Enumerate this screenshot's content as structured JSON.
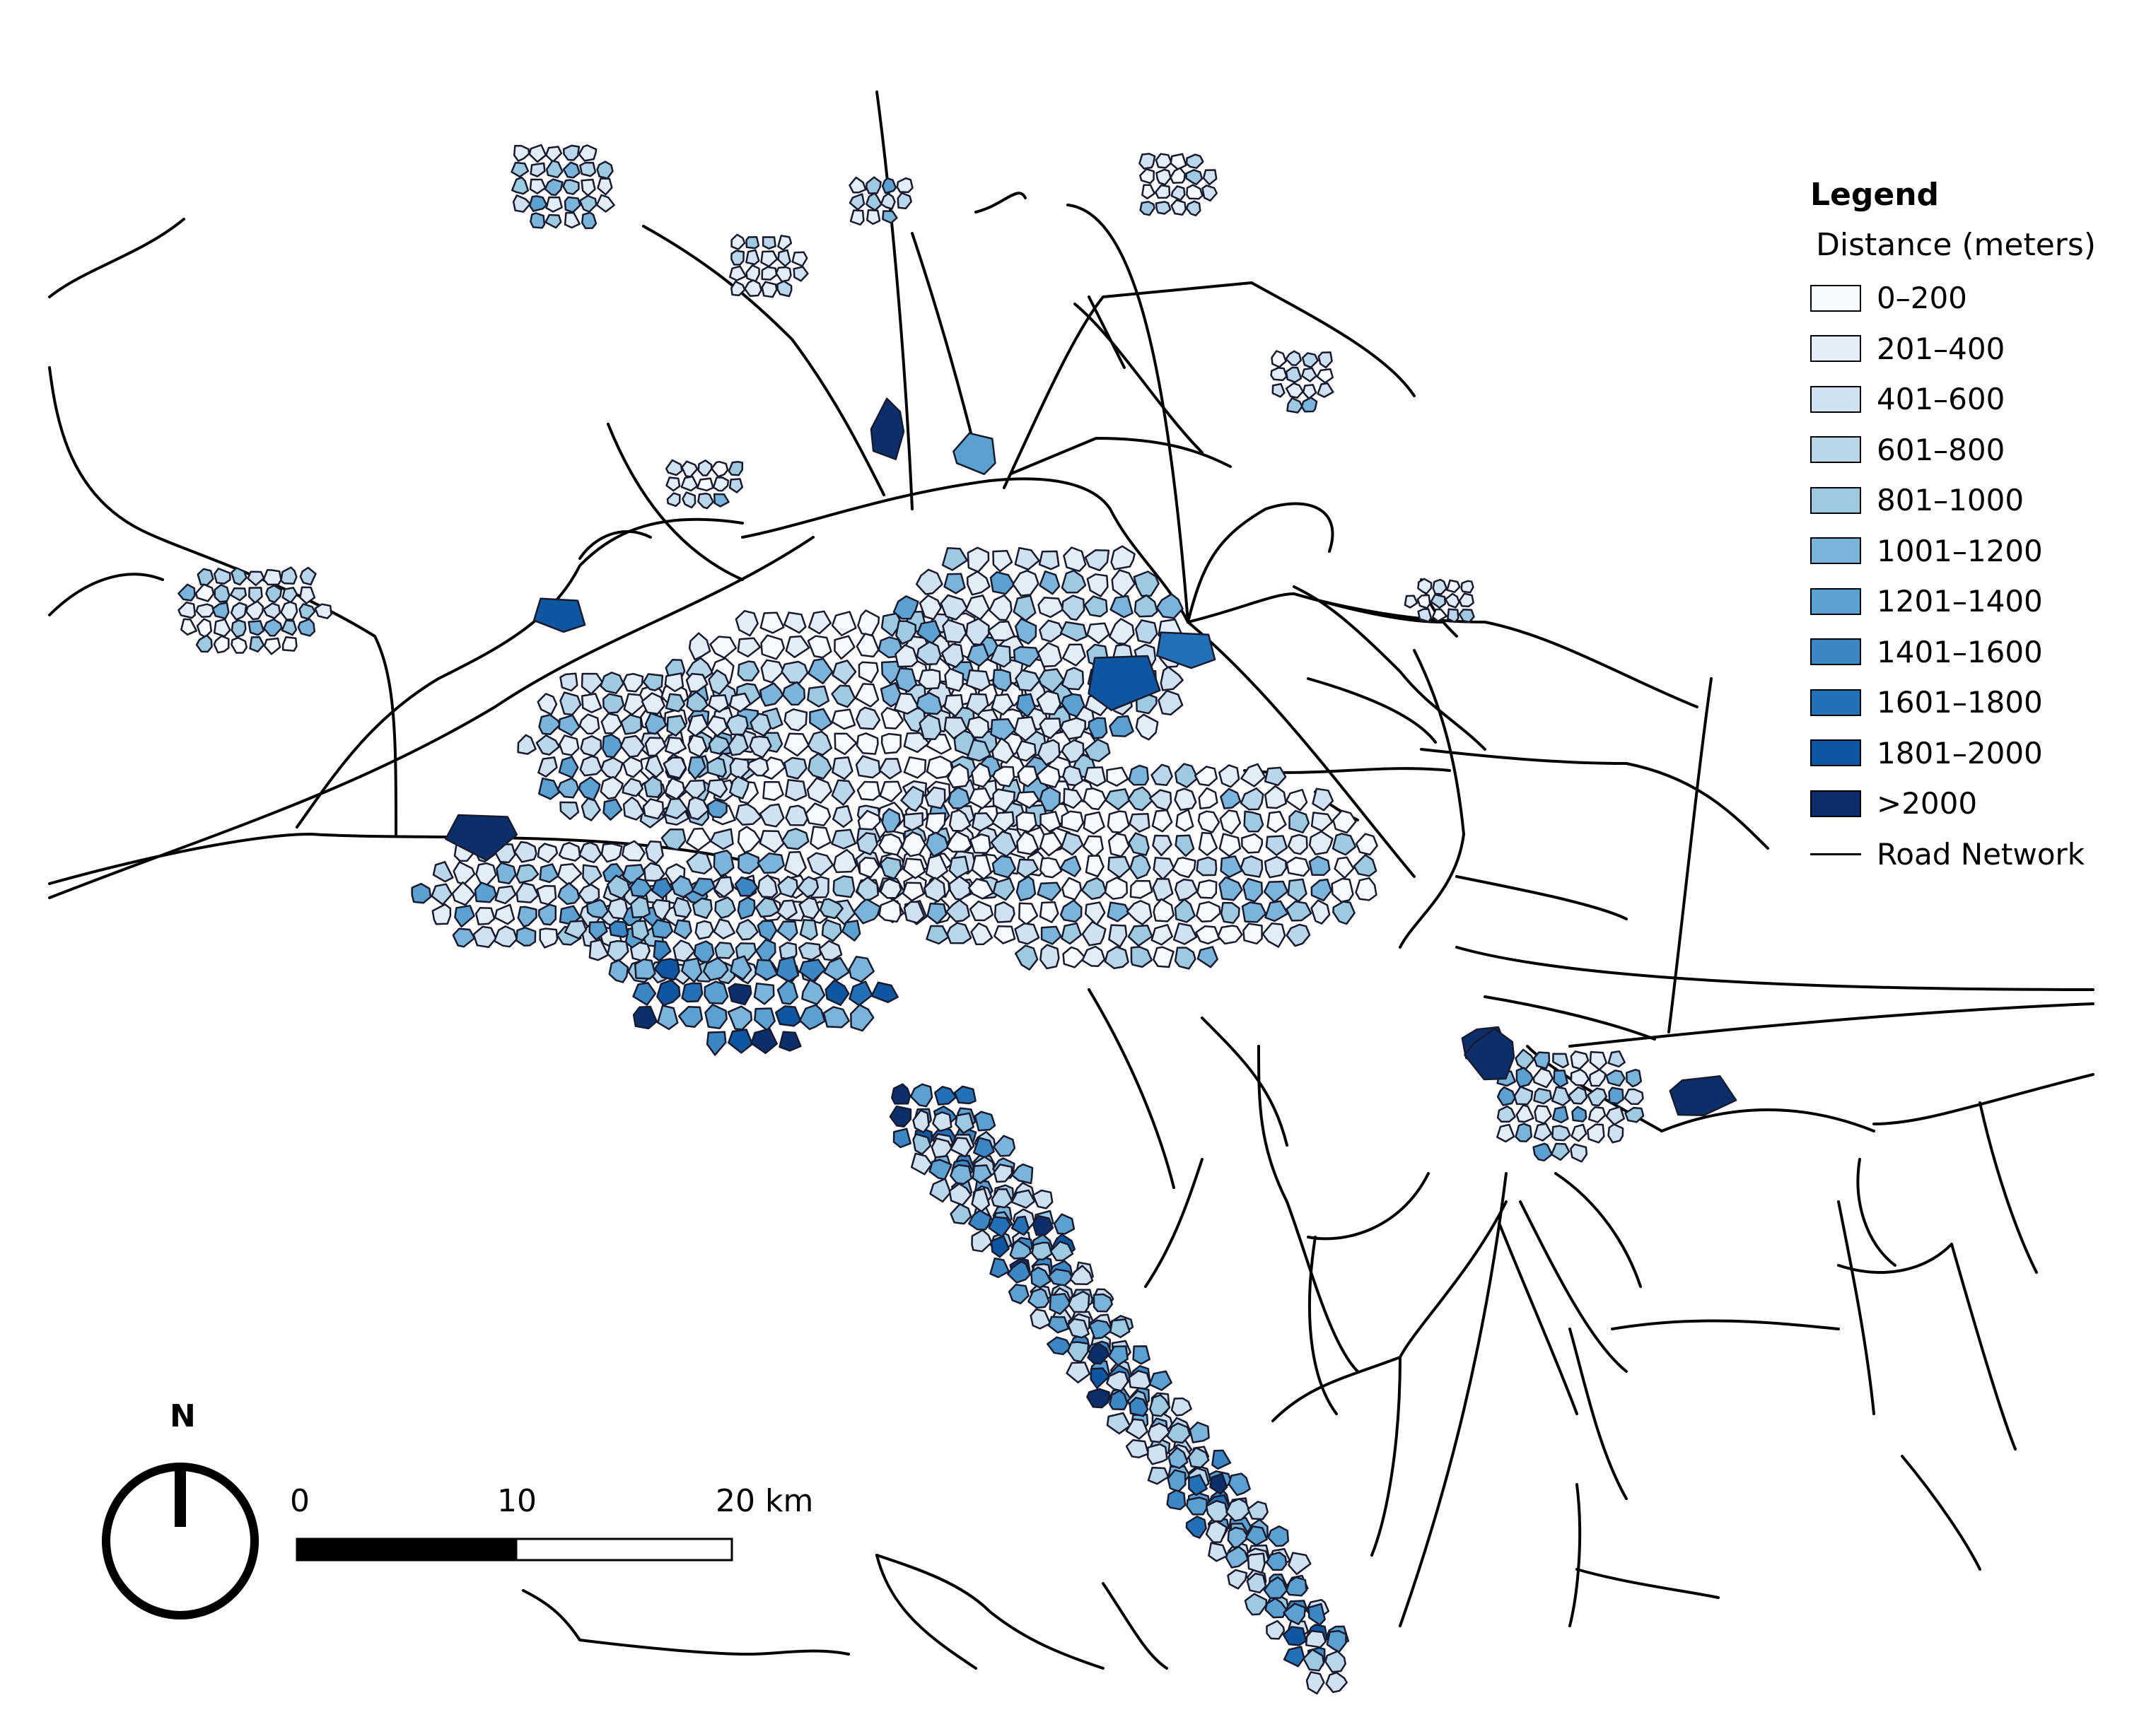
{
  "legend": {
    "title": "Legend",
    "subtitle": "Distance (meters)",
    "classes": [
      {
        "label": "0–200",
        "color": "#f7fbff"
      },
      {
        "label": "201–400",
        "color": "#e3eef9"
      },
      {
        "label": "401–600",
        "color": "#d0e1f2"
      },
      {
        "label": "601–800",
        "color": "#bad6eb"
      },
      {
        "label": "801–1000",
        "color": "#9ecae1"
      },
      {
        "label": "1001–1200",
        "color": "#7ab4da"
      },
      {
        "label": "1201–1400",
        "color": "#5aa0d0"
      },
      {
        "label": "1401–1600",
        "color": "#3b86c3"
      },
      {
        "label": "1601–1800",
        "color": "#2470b6"
      },
      {
        "label": "1801–2000",
        "color": "#0f56a1"
      },
      {
        ">": "",
        "label": ">2000",
        "color": "#0a2f6b"
      }
    ],
    "road_label": "Road Network"
  },
  "north_arrow": {
    "letter": "N",
    "icon": "north-arrow-icon"
  },
  "scale_bar": {
    "label_0": "0",
    "label_10": "10",
    "label_20": "20 km",
    "unit": "km"
  }
}
